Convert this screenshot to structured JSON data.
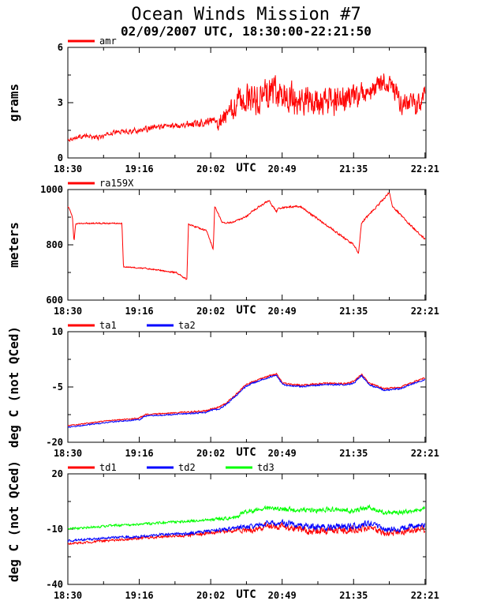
{
  "title": "Ocean Winds Mission #7",
  "subtitle": "02/09/2007  UTC, 18:30:00-22:21:50",
  "colors": {
    "red": "#ff0000",
    "blue": "#0000ff",
    "green": "#00ff00",
    "axis": "#000000"
  },
  "chart_data": [
    {
      "type": "line",
      "ylabel": "grams",
      "xlabel": "UTC",
      "x_tick_labels": [
        "18:30",
        "19:16",
        "20:02",
        "20:49",
        "21:35",
        "22:21"
      ],
      "ylim": [
        0,
        6
      ],
      "y_tick_labels": [
        "0",
        "3",
        "6"
      ],
      "series": [
        {
          "name": "amr",
          "color": "#ff0000",
          "noise": [
            0.15,
            0.15,
            0.2,
            0.2,
            0.3,
            0.8,
            1.2,
            1.2,
            1.2,
            1.0,
            0.8,
            0.8
          ],
          "x": [
            "18:30",
            "18:40",
            "18:50",
            "19:00",
            "19:16",
            "19:30",
            "19:45",
            "20:02",
            "20:10",
            "20:15",
            "20:19",
            "20:21",
            "20:22",
            "20:30",
            "20:40",
            "20:49",
            "20:55",
            "21:05",
            "21:15",
            "21:25",
            "21:35",
            "21:45",
            "21:55",
            "22:00",
            "22:05",
            "22:15",
            "22:21"
          ],
          "y": [
            1.0,
            1.2,
            1.1,
            1.4,
            1.5,
            1.7,
            1.8,
            2.0,
            2.2,
            2.5,
            3.0,
            3.5,
            3.0,
            3.2,
            3.5,
            3.4,
            3.2,
            3.0,
            3.0,
            3.1,
            3.2,
            3.5,
            4.2,
            3.8,
            3.0,
            2.8,
            3.5
          ]
        }
      ]
    },
    {
      "type": "line",
      "ylabel": "meters",
      "xlabel": "UTC",
      "x_tick_labels": [
        "18:30",
        "19:16",
        "20:02",
        "20:49",
        "21:35",
        "22:21"
      ],
      "ylim": [
        600,
        1000
      ],
      "y_tick_labels": [
        "600",
        "800",
        "1000"
      ],
      "series": [
        {
          "name": "ra159X",
          "color": "#ff0000",
          "noise": [
            3,
            3,
            3,
            4,
            4,
            4,
            5,
            5,
            5,
            5,
            5,
            5
          ],
          "x": [
            "18:30",
            "18:31",
            "18:33",
            "18:34",
            "18:35",
            "18:40",
            "18:50",
            "19:00",
            "19:05",
            "19:06",
            "19:20",
            "19:40",
            "19:47",
            "19:48",
            "19:55",
            "20:00",
            "20:04",
            "20:05",
            "20:10",
            "20:15",
            "20:25",
            "20:30",
            "20:40",
            "20:45",
            "20:46",
            "20:50",
            "21:00",
            "21:10",
            "21:20",
            "21:35",
            "21:38",
            "21:40",
            "21:50",
            "21:58",
            "22:00",
            "22:10",
            "22:21"
          ],
          "y": [
            940,
            930,
            900,
            810,
            875,
            878,
            878,
            878,
            878,
            720,
            715,
            700,
            675,
            875,
            860,
            850,
            785,
            940,
            880,
            880,
            900,
            925,
            960,
            920,
            930,
            935,
            940,
            900,
            860,
            800,
            770,
            880,
            940,
            990,
            940,
            880,
            820
          ]
        }
      ]
    },
    {
      "type": "line",
      "ylabel": "deg C (not QCed)",
      "xlabel": "UTC",
      "x_tick_labels": [
        "18:30",
        "19:16",
        "20:02",
        "20:49",
        "21:35",
        "22:21"
      ],
      "ylim": [
        -20,
        10
      ],
      "y_tick_labels": [
        "-20",
        "-5",
        "10"
      ],
      "series": [
        {
          "name": "ta1",
          "color": "#ff0000",
          "noise": [
            0.2,
            0.2,
            0.25,
            0.25,
            0.3,
            0.3,
            0.3,
            0.3,
            0.3,
            0.3,
            0.3,
            0.3
          ],
          "offset": 0,
          "x": [
            "18:30",
            "18:40",
            "18:50",
            "19:00",
            "19:16",
            "19:20",
            "19:40",
            "20:00",
            "20:02",
            "20:08",
            "20:12",
            "20:20",
            "20:25",
            "20:30",
            "20:40",
            "20:45",
            "20:49",
            "21:00",
            "21:15",
            "21:30",
            "21:35",
            "21:40",
            "21:45",
            "21:55",
            "22:05",
            "22:21"
          ],
          "y": [
            -15.5,
            -15.0,
            -14.5,
            -14.0,
            -13.5,
            -12.5,
            -12.0,
            -11.5,
            -11.0,
            -10.5,
            -9.5,
            -6.5,
            -4.5,
            -3.5,
            -2.0,
            -1.5,
            -4.0,
            -4.5,
            -4.0,
            -4.0,
            -3.5,
            -1.5,
            -4.0,
            -5.5,
            -5.0,
            -2.5
          ]
        },
        {
          "name": "ta2",
          "color": "#0000ff",
          "noise": [
            0.2,
            0.2,
            0.25,
            0.25,
            0.3,
            0.3,
            0.3,
            0.3,
            0.3,
            0.3,
            0.3,
            0.3
          ],
          "offset": -0.4,
          "x": [
            "18:30",
            "18:40",
            "18:50",
            "19:00",
            "19:16",
            "19:20",
            "19:40",
            "20:00",
            "20:02",
            "20:08",
            "20:12",
            "20:20",
            "20:25",
            "20:30",
            "20:40",
            "20:45",
            "20:49",
            "21:00",
            "21:15",
            "21:30",
            "21:35",
            "21:40",
            "21:45",
            "21:55",
            "22:05",
            "22:21"
          ],
          "y": [
            -15.5,
            -15.0,
            -14.5,
            -14.0,
            -13.5,
            -12.5,
            -12.0,
            -11.5,
            -11.0,
            -10.5,
            -9.5,
            -6.5,
            -4.5,
            -3.5,
            -2.0,
            -1.5,
            -4.0,
            -4.5,
            -4.0,
            -4.0,
            -3.5,
            -1.5,
            -4.0,
            -5.5,
            -5.0,
            -2.5
          ]
        }
      ]
    },
    {
      "type": "line",
      "ylabel": "deg C (not QCed)",
      "xlabel": "UTC",
      "x_tick_labels": [
        "18:30",
        "19:16",
        "20:02",
        "20:49",
        "21:35",
        "22:21"
      ],
      "ylim": [
        -40,
        20
      ],
      "y_tick_labels": [
        "-40",
        "-10",
        "20"
      ],
      "series": [
        {
          "name": "td1",
          "color": "#ff0000",
          "noise": [
            0.8,
            0.8,
            1.0,
            1.0,
            1.2,
            1.5,
            2.5,
            3.0,
            3.0,
            3.0,
            2.5,
            2.5
          ],
          "x": [
            "18:30",
            "18:45",
            "19:00",
            "19:16",
            "19:30",
            "19:45",
            "20:02",
            "20:15",
            "20:21",
            "20:22",
            "20:30",
            "20:40",
            "20:49",
            "21:00",
            "21:10",
            "21:20",
            "21:35",
            "21:45",
            "21:55",
            "22:05",
            "22:15",
            "22:21"
          ],
          "y": [
            -18,
            -17,
            -16,
            -15,
            -14,
            -13.5,
            -12,
            -11,
            -10,
            -11,
            -10,
            -8,
            -9,
            -10,
            -11,
            -11,
            -10,
            -9,
            -12,
            -12,
            -10,
            -10
          ]
        },
        {
          "name": "td2",
          "color": "#0000ff",
          "noise": [
            0.8,
            0.8,
            1.0,
            1.0,
            1.2,
            1.5,
            2.0,
            2.5,
            2.5,
            2.5,
            2.0,
            2.0
          ],
          "x": [
            "18:30",
            "18:45",
            "19:00",
            "19:16",
            "19:30",
            "19:45",
            "20:02",
            "20:15",
            "20:21",
            "20:22",
            "20:30",
            "20:40",
            "20:49",
            "21:00",
            "21:10",
            "21:20",
            "21:35",
            "21:45",
            "21:55",
            "22:05",
            "22:15",
            "22:21"
          ],
          "y": [
            -16.5,
            -15.5,
            -14.5,
            -14,
            -13,
            -12.5,
            -11,
            -10,
            -9,
            -9,
            -8.5,
            -6.5,
            -7,
            -8,
            -9,
            -9,
            -8,
            -7,
            -10,
            -10,
            -8,
            -7.5
          ]
        },
        {
          "name": "td3",
          "color": "#00ff00",
          "noise": [
            0.8,
            0.8,
            0.9,
            0.9,
            1.0,
            1.2,
            1.5,
            1.8,
            1.8,
            1.8,
            1.5,
            1.5
          ],
          "x": [
            "18:30",
            "18:45",
            "19:00",
            "19:16",
            "19:30",
            "19:45",
            "20:02",
            "20:15",
            "20:21",
            "20:22",
            "20:30",
            "20:40",
            "20:49",
            "21:00",
            "21:10",
            "21:20",
            "21:35",
            "21:45",
            "21:55",
            "22:05",
            "22:15",
            "22:21"
          ],
          "y": [
            -10,
            -9,
            -8,
            -7.5,
            -6.5,
            -6,
            -5,
            -4,
            -3,
            -1,
            0,
            2,
            1,
            0,
            0,
            1,
            0,
            2,
            -1,
            -1,
            0,
            1
          ]
        }
      ]
    }
  ]
}
